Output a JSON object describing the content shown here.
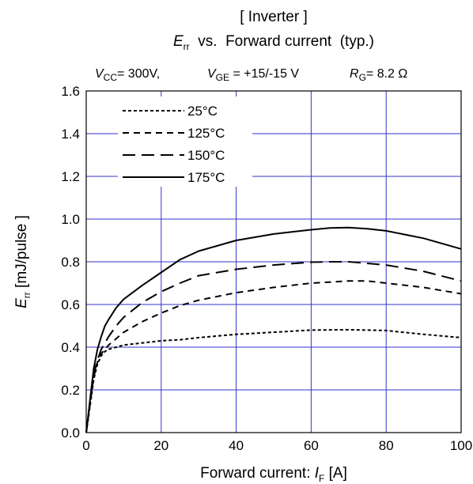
{
  "chart_data": {
    "type": "line",
    "title_line1": "[ Inverter ]",
    "title_line2": {
      "sym": "E",
      "sub": "rr",
      "rest": "  vs.  Forward current  (typ.)"
    },
    "conditions": {
      "vcc": {
        "sym": "V",
        "sub": "CC",
        "rest": "= 300V,"
      },
      "vge": {
        "sym": "V",
        "sub": "GE",
        "rest": " = +15/-15 V"
      },
      "rg": {
        "sym": "R",
        "sub": "G",
        "rest": "= 8.2 Ω"
      }
    },
    "xlabel": {
      "text": "Forward current: ",
      "sym": "I",
      "sub": "F",
      "unit": " [A]"
    },
    "ylabel": {
      "sym": "E",
      "sub": "rr",
      "unit": " [mJ/pulse ]"
    },
    "xlim": [
      0,
      100
    ],
    "ylim": [
      0.0,
      1.6
    ],
    "x_ticks": [
      "0",
      "20",
      "40",
      "60",
      "80",
      "100"
    ],
    "y_ticks": [
      "0.0",
      "0.2",
      "0.4",
      "0.6",
      "0.8",
      "1.0",
      "1.2",
      "1.4",
      "1.6"
    ],
    "grid": true,
    "legend_position": "top-left",
    "grid_color": "#3333cc",
    "series": [
      {
        "name": "25°C",
        "dash": "4,3",
        "points": [
          [
            0,
            0
          ],
          [
            1,
            0.12
          ],
          [
            2,
            0.25
          ],
          [
            3,
            0.32
          ],
          [
            4,
            0.36
          ],
          [
            5,
            0.38
          ],
          [
            6,
            0.39
          ],
          [
            8,
            0.4
          ],
          [
            10,
            0.41
          ],
          [
            15,
            0.42
          ],
          [
            20,
            0.43
          ],
          [
            25,
            0.435
          ],
          [
            30,
            0.445
          ],
          [
            40,
            0.46
          ],
          [
            50,
            0.47
          ],
          [
            60,
            0.48
          ],
          [
            70,
            0.482
          ],
          [
            80,
            0.478
          ],
          [
            90,
            0.46
          ],
          [
            100,
            0.445
          ]
        ]
      },
      {
        "name": "125°C",
        "dash": "8,6",
        "points": [
          [
            0,
            0
          ],
          [
            1,
            0.13
          ],
          [
            2,
            0.26
          ],
          [
            3,
            0.33
          ],
          [
            4,
            0.37
          ],
          [
            5,
            0.39
          ],
          [
            6,
            0.41
          ],
          [
            8,
            0.44
          ],
          [
            10,
            0.47
          ],
          [
            15,
            0.52
          ],
          [
            20,
            0.56
          ],
          [
            25,
            0.595
          ],
          [
            30,
            0.62
          ],
          [
            40,
            0.655
          ],
          [
            50,
            0.68
          ],
          [
            60,
            0.7
          ],
          [
            70,
            0.71
          ],
          [
            75,
            0.71
          ],
          [
            80,
            0.7
          ],
          [
            90,
            0.68
          ],
          [
            100,
            0.65
          ]
        ]
      },
      {
        "name": "150°C",
        "dash": "16,8",
        "points": [
          [
            0,
            0
          ],
          [
            1,
            0.14
          ],
          [
            2,
            0.27
          ],
          [
            3,
            0.34
          ],
          [
            4,
            0.39
          ],
          [
            5,
            0.42
          ],
          [
            6,
            0.45
          ],
          [
            8,
            0.5
          ],
          [
            10,
            0.54
          ],
          [
            15,
            0.61
          ],
          [
            20,
            0.66
          ],
          [
            25,
            0.7
          ],
          [
            30,
            0.735
          ],
          [
            40,
            0.765
          ],
          [
            50,
            0.785
          ],
          [
            60,
            0.798
          ],
          [
            65,
            0.8
          ],
          [
            70,
            0.8
          ],
          [
            80,
            0.785
          ],
          [
            90,
            0.755
          ],
          [
            100,
            0.71
          ]
        ]
      },
      {
        "name": "175°C",
        "dash": "",
        "points": [
          [
            0,
            0
          ],
          [
            1,
            0.15
          ],
          [
            2,
            0.3
          ],
          [
            3,
            0.39
          ],
          [
            4,
            0.45
          ],
          [
            5,
            0.5
          ],
          [
            6,
            0.53
          ],
          [
            8,
            0.585
          ],
          [
            10,
            0.625
          ],
          [
            15,
            0.69
          ],
          [
            20,
            0.75
          ],
          [
            25,
            0.81
          ],
          [
            30,
            0.85
          ],
          [
            40,
            0.9
          ],
          [
            50,
            0.93
          ],
          [
            60,
            0.95
          ],
          [
            65,
            0.958
          ],
          [
            70,
            0.96
          ],
          [
            75,
            0.955
          ],
          [
            80,
            0.945
          ],
          [
            90,
            0.91
          ],
          [
            100,
            0.86
          ]
        ]
      }
    ]
  }
}
